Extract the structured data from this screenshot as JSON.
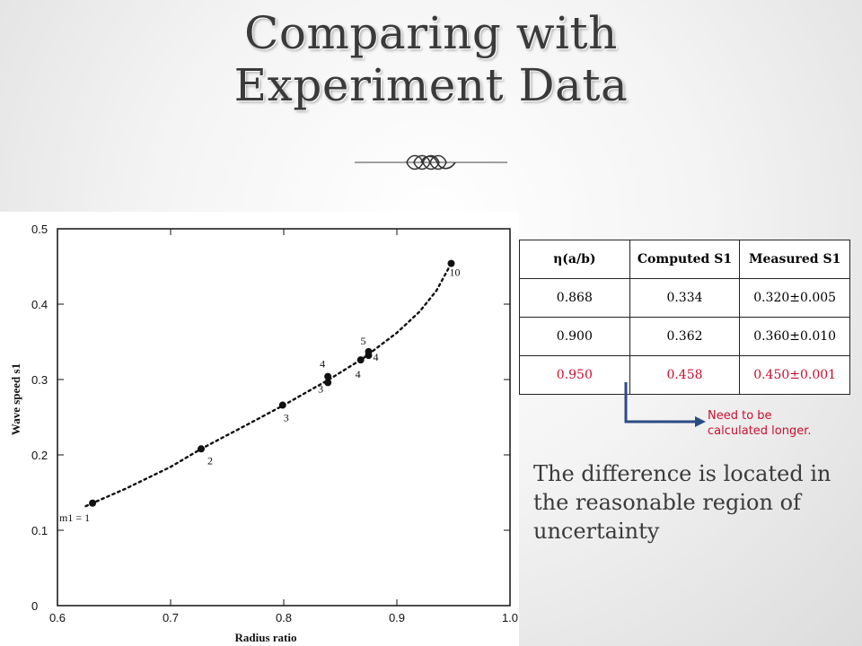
{
  "title": {
    "line1": "Comparing with",
    "line2": "Experiment Data"
  },
  "table": {
    "headers": [
      "η(a/b)",
      "Computed S1",
      "Measured S1"
    ],
    "rows": [
      [
        "0.868",
        "0.334",
        "0.320±0.005"
      ],
      [
        "0.900",
        "0.362",
        "0.360±0.010"
      ],
      [
        "0.950",
        "0.458",
        "0.450±0.001"
      ]
    ],
    "highlight_row_color": "#c8102e"
  },
  "note": "Need to be calculated longer.",
  "conclusion": "The difference is located in the reasonable region of uncertainty",
  "chart_data": {
    "type": "scatter",
    "xlabel": "Radius ratio",
    "ylabel": "Wave speed s1",
    "xlim": [
      0.6,
      1.0
    ],
    "ylim": [
      0,
      0.5
    ],
    "xticks": [
      "0.6",
      "0.7",
      "0.8",
      "0.9",
      "1.0"
    ],
    "yticks": [
      "0",
      "0.1",
      "0.2",
      "0.3",
      "0.4",
      "0.5"
    ],
    "points": [
      {
        "x": 0.631,
        "y": 0.136,
        "label": "m1 = 1"
      },
      {
        "x": 0.727,
        "y": 0.208,
        "label": "2"
      },
      {
        "x": 0.799,
        "y": 0.266,
        "label": "3"
      },
      {
        "x": 0.839,
        "y": 0.296,
        "label": "3"
      },
      {
        "x": 0.839,
        "y": 0.304,
        "label": "4"
      },
      {
        "x": 0.868,
        "y": 0.326,
        "label": "4"
      },
      {
        "x": 0.875,
        "y": 0.332,
        "label": "4"
      },
      {
        "x": 0.875,
        "y": 0.337,
        "label": "5"
      },
      {
        "x": 0.948,
        "y": 0.454,
        "label": "10"
      }
    ],
    "curve": [
      [
        0.625,
        0.132
      ],
      [
        0.66,
        0.155
      ],
      [
        0.7,
        0.184
      ],
      [
        0.727,
        0.208
      ],
      [
        0.76,
        0.234
      ],
      [
        0.8,
        0.266
      ],
      [
        0.84,
        0.3
      ],
      [
        0.87,
        0.328
      ],
      [
        0.9,
        0.362
      ],
      [
        0.92,
        0.39
      ],
      [
        0.935,
        0.418
      ],
      [
        0.948,
        0.454
      ]
    ],
    "grid": false,
    "marker_color": "#111111"
  }
}
